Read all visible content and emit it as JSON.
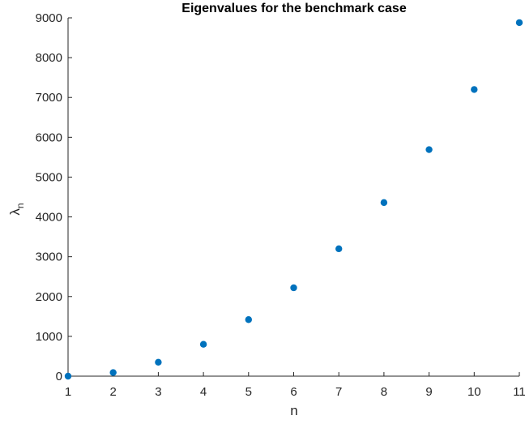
{
  "chart_data": {
    "type": "scatter",
    "title": "Eigenvalues for the benchmark case",
    "xlabel": "n",
    "ylabel": "λ",
    "ylabel_subscript": "n",
    "xlim": [
      1,
      11
    ],
    "ylim": [
      0,
      9000
    ],
    "xticks": [
      1,
      2,
      3,
      4,
      5,
      6,
      7,
      8,
      9,
      10,
      11
    ],
    "yticks": [
      0,
      1000,
      2000,
      3000,
      4000,
      5000,
      6000,
      7000,
      8000,
      9000
    ],
    "grid": false,
    "series": [
      {
        "color": "#0072BD",
        "x": [
          1,
          2,
          3,
          4,
          5,
          6,
          7,
          8,
          9,
          10,
          11
        ],
        "y": [
          0,
          90,
          350,
          800,
          1420,
          2220,
          3200,
          4360,
          5690,
          7200,
          8880
        ]
      }
    ]
  }
}
